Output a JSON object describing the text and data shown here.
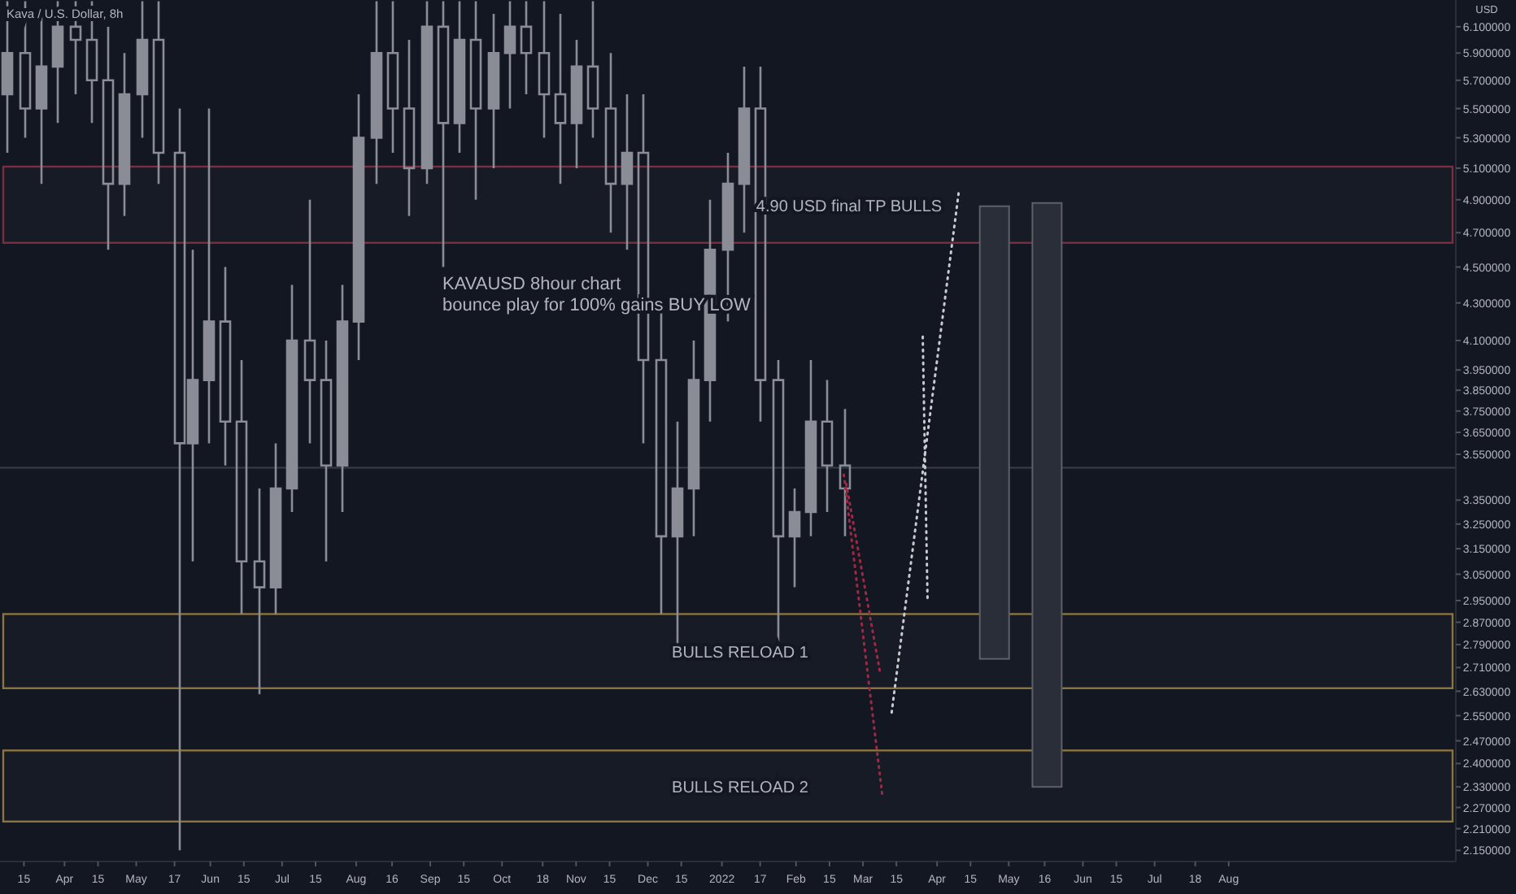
{
  "chart_data": {
    "type": "candlestick",
    "title": "Kava / U.S. Dollar, 8h",
    "ylabel": "USD",
    "log": true,
    "annotations": [
      "KAVAUSD 8hour chart\nbounce play for 100% gains BUY LOW"
    ],
    "xlim": [
      "2021-03-05",
      "2022-11-04"
    ],
    "ylim": [
      2.12,
      6.31
    ],
    "xticks": [
      {
        "value": "2021-03-15",
        "label": "15"
      },
      {
        "value": "2021-04-01",
        "label": "Apr"
      },
      {
        "value": "2021-04-15",
        "label": "15"
      },
      {
        "value": "2021-05-01",
        "label": "May"
      },
      {
        "value": "2021-05-17",
        "label": "17"
      },
      {
        "value": "2021-06-01",
        "label": "Jun"
      },
      {
        "value": "2021-06-15",
        "label": "15"
      },
      {
        "value": "2021-07-01",
        "label": "Jul"
      },
      {
        "value": "2021-07-15",
        "label": "15"
      },
      {
        "value": "2021-08-01",
        "label": "Aug"
      },
      {
        "value": "2021-08-16",
        "label": "16"
      },
      {
        "value": "2021-09-01",
        "label": "Sep"
      },
      {
        "value": "2021-09-15",
        "label": "15"
      },
      {
        "value": "2021-10-01",
        "label": "Oct"
      },
      {
        "value": "2021-10-18",
        "label": "18"
      },
      {
        "value": "2021-11-01",
        "label": "Nov"
      },
      {
        "value": "2021-11-15",
        "label": "15"
      },
      {
        "value": "2021-12-01",
        "label": "Dec"
      },
      {
        "value": "2021-12-15",
        "label": "15"
      },
      {
        "value": "2022-01-01",
        "label": "2022"
      },
      {
        "value": "2022-01-17",
        "label": "17"
      },
      {
        "value": "2022-02-01",
        "label": "Feb"
      },
      {
        "value": "2022-02-15",
        "label": "15"
      },
      {
        "value": "2022-03-01",
        "label": "Mar"
      },
      {
        "value": "2022-03-15",
        "label": "15"
      },
      {
        "value": "2022-04-01",
        "label": "Apr"
      },
      {
        "value": "2022-04-15",
        "label": "15"
      },
      {
        "value": "2022-05-01",
        "label": "May"
      },
      {
        "value": "2022-05-16",
        "label": "16"
      },
      {
        "value": "2022-06-01",
        "label": "Jun"
      },
      {
        "value": "2022-06-15",
        "label": "15"
      },
      {
        "value": "2022-07-01",
        "label": "Jul"
      },
      {
        "value": "2022-07-18",
        "label": "18"
      },
      {
        "value": "2022-08-01",
        "label": "Aug"
      }
    ],
    "yticks": [
      {
        "value": 6.1,
        "label": "6.100000"
      },
      {
        "value": 5.9,
        "label": "5.900000"
      },
      {
        "value": 5.7,
        "label": "5.700000"
      },
      {
        "value": 5.5,
        "label": "5.500000"
      },
      {
        "value": 5.3,
        "label": "5.300000"
      },
      {
        "value": 5.1,
        "label": "5.100000"
      },
      {
        "value": 4.9,
        "label": "4.900000"
      },
      {
        "value": 4.7,
        "label": "4.700000"
      },
      {
        "value": 4.5,
        "label": "4.500000"
      },
      {
        "value": 4.3,
        "label": "4.300000"
      },
      {
        "value": 4.1,
        "label": "4.100000"
      },
      {
        "value": 3.95,
        "label": "3.950000"
      },
      {
        "value": 3.85,
        "label": "3.850000"
      },
      {
        "value": 3.75,
        "label": "3.750000"
      },
      {
        "value": 3.65,
        "label": "3.650000"
      },
      {
        "value": 3.55,
        "label": "3.550000"
      },
      {
        "value": 3.35,
        "label": "3.350000"
      },
      {
        "value": 3.25,
        "label": "3.250000"
      },
      {
        "value": 3.15,
        "label": "3.150000"
      },
      {
        "value": 3.05,
        "label": "3.050000"
      },
      {
        "value": 2.95,
        "label": "2.950000"
      },
      {
        "value": 2.87,
        "label": "2.870000"
      },
      {
        "value": 2.79,
        "label": "2.790000"
      },
      {
        "value": 2.71,
        "label": "2.710000"
      },
      {
        "value": 2.63,
        "label": "2.630000"
      },
      {
        "value": 2.55,
        "label": "2.550000"
      },
      {
        "value": 2.47,
        "label": "2.470000"
      },
      {
        "value": 2.4,
        "label": "2.400000"
      },
      {
        "value": 2.33,
        "label": "2.330000"
      },
      {
        "value": 2.27,
        "label": "2.270000"
      },
      {
        "value": 2.21,
        "label": "2.210000"
      },
      {
        "value": 2.15,
        "label": "2.150000"
      }
    ],
    "bands": [
      {
        "axis": "y",
        "from": 4.64,
        "to": 5.11,
        "label": "4.90 USD final TP BULLS",
        "color": "#7a2e3f"
      },
      {
        "axis": "y",
        "from": 2.64,
        "to": 2.9,
        "label": "BULLS RELOAD 1",
        "color": "#8a7440"
      },
      {
        "axis": "y",
        "from": 2.23,
        "to": 2.44,
        "label": "BULLS RELOAD 2",
        "color": "#8a7440"
      }
    ],
    "ref_lines": [
      {
        "axis": "y",
        "value": 3.49,
        "color": "#3a3e4a"
      }
    ],
    "series": [
      {
        "color": "#8a8d96",
        "x": [
          "2021-03-08",
          "2021-03-15",
          "2021-03-22",
          "2021-03-29",
          "2021-04-05",
          "2021-04-12",
          "2021-04-19",
          "2021-04-26",
          "2021-05-03",
          "2021-05-10",
          "2021-05-19",
          "2021-05-24",
          "2021-05-31",
          "2021-06-07",
          "2021-06-14",
          "2021-06-21",
          "2021-06-28",
          "2021-07-05",
          "2021-07-12",
          "2021-07-19",
          "2021-07-26",
          "2021-08-02",
          "2021-08-09",
          "2021-08-16",
          "2021-08-23",
          "2021-08-30",
          "2021-09-06",
          "2021-09-13",
          "2021-09-20",
          "2021-09-27",
          "2021-10-04",
          "2021-10-11",
          "2021-10-18",
          "2021-10-25",
          "2021-11-01",
          "2021-11-08",
          "2021-11-15",
          "2021-11-22",
          "2021-11-29",
          "2021-12-06",
          "2021-12-13",
          "2021-12-20",
          "2021-12-27",
          "2022-01-03",
          "2022-01-10",
          "2022-01-17",
          "2022-01-24",
          "2022-01-31",
          "2022-02-07",
          "2022-02-14",
          "2022-02-21"
        ],
        "ohlc": [
          [
            5.6,
            6.3,
            5.2,
            5.9
          ],
          [
            5.9,
            6.3,
            5.3,
            5.5
          ],
          [
            5.5,
            6.2,
            5.0,
            5.8
          ],
          [
            5.8,
            6.3,
            5.4,
            6.1
          ],
          [
            6.1,
            6.3,
            5.6,
            6.0
          ],
          [
            6.0,
            6.3,
            5.4,
            5.7
          ],
          [
            5.7,
            6.1,
            4.6,
            5.0
          ],
          [
            5.0,
            5.9,
            4.8,
            5.6
          ],
          [
            5.6,
            6.3,
            5.3,
            6.0
          ],
          [
            6.0,
            6.3,
            5.0,
            5.2
          ],
          [
            5.2,
            5.5,
            2.15,
            3.6
          ],
          [
            3.6,
            4.6,
            3.1,
            3.9
          ],
          [
            3.9,
            5.5,
            3.6,
            4.2
          ],
          [
            4.2,
            4.5,
            3.5,
            3.7
          ],
          [
            3.7,
            4.0,
            2.9,
            3.1
          ],
          [
            3.1,
            3.4,
            2.62,
            3.0
          ],
          [
            3.0,
            3.6,
            2.9,
            3.4
          ],
          [
            3.4,
            4.4,
            3.3,
            4.1
          ],
          [
            4.1,
            4.9,
            3.6,
            3.9
          ],
          [
            3.9,
            4.1,
            3.1,
            3.5
          ],
          [
            3.5,
            4.4,
            3.3,
            4.2
          ],
          [
            4.2,
            5.6,
            4.0,
            5.3
          ],
          [
            5.3,
            6.3,
            5.0,
            5.9
          ],
          [
            5.9,
            6.3,
            5.2,
            5.5
          ],
          [
            5.5,
            6.0,
            4.8,
            5.1
          ],
          [
            5.1,
            6.3,
            5.0,
            6.1
          ],
          [
            6.1,
            6.3,
            4.5,
            5.4
          ],
          [
            5.4,
            6.3,
            5.2,
            6.0
          ],
          [
            6.0,
            6.3,
            4.9,
            5.5
          ],
          [
            5.5,
            6.2,
            5.1,
            5.9
          ],
          [
            5.9,
            6.3,
            5.5,
            6.1
          ],
          [
            6.1,
            6.3,
            5.6,
            5.9
          ],
          [
            5.9,
            6.3,
            5.3,
            5.6
          ],
          [
            5.6,
            6.2,
            5.0,
            5.4
          ],
          [
            5.4,
            6.0,
            5.1,
            5.8
          ],
          [
            5.8,
            6.3,
            5.3,
            5.5
          ],
          [
            5.5,
            5.9,
            4.7,
            5.0
          ],
          [
            5.0,
            5.6,
            4.6,
            5.2
          ],
          [
            5.2,
            5.6,
            3.6,
            4.0
          ],
          [
            4.0,
            4.3,
            2.9,
            3.2
          ],
          [
            3.2,
            3.7,
            2.75,
            3.4
          ],
          [
            3.4,
            4.1,
            3.2,
            3.9
          ],
          [
            3.9,
            4.9,
            3.7,
            4.6
          ],
          [
            4.6,
            5.2,
            4.2,
            5.0
          ],
          [
            5.0,
            5.8,
            4.7,
            5.5
          ],
          [
            5.5,
            5.8,
            3.7,
            3.9
          ],
          [
            3.9,
            4.0,
            2.8,
            3.2
          ],
          [
            3.2,
            3.4,
            3.0,
            3.3
          ],
          [
            3.3,
            4.0,
            3.2,
            3.7
          ],
          [
            3.7,
            3.9,
            3.3,
            3.5
          ],
          [
            3.5,
            3.76,
            3.2,
            3.4
          ]
        ]
      },
      {
        "type": "line",
        "line_style": "dotted",
        "color": "#9c2a44",
        "x": [
          "2022-02-21",
          "2022-03-09"
        ],
        "values": [
          3.46,
          2.31
        ]
      },
      {
        "type": "line",
        "line_style": "dotted",
        "color": "#9c2a44",
        "x": [
          "2022-02-22",
          "2022-03-08"
        ],
        "values": [
          3.42,
          2.7
        ]
      },
      {
        "type": "line",
        "line_style": "dotted",
        "color": "#c8cad0",
        "x": [
          "2022-03-13",
          "2022-04-10"
        ],
        "values": [
          2.56,
          4.94
        ]
      },
      {
        "type": "line",
        "line_style": "dotted",
        "color": "#c8cad0",
        "x": [
          "2022-03-26",
          "2022-03-28"
        ],
        "values": [
          4.12,
          2.96
        ]
      },
      {
        "type": "bar",
        "color": "#2a2e39",
        "x": [
          "2022-04-25",
          "2022-05-17"
        ],
        "base": [
          2.74,
          2.33
        ],
        "values": [
          2.12,
          2.55
        ]
      }
    ]
  }
}
